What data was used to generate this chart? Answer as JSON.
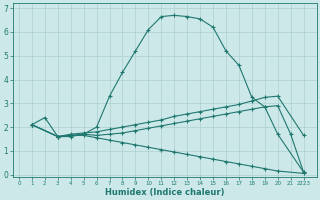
{
  "xlabel": "Humidex (Indice chaleur)",
  "bg_color": "#cde8e8",
  "grid_color": "#aecfcf",
  "line_color": "#1f7870",
  "xlim": [
    -0.5,
    23
  ],
  "ylim": [
    -0.1,
    7.2
  ],
  "xtick_labels": [
    "0",
    "1",
    "2",
    "3",
    "4",
    "5",
    "6",
    "7",
    "8",
    "9",
    "10",
    "11",
    "12",
    "13",
    "14",
    "15",
    "16",
    "17",
    "18",
    "19",
    "20",
    "21",
    "2223"
  ],
  "xtick_vals": [
    0,
    1,
    2,
    3,
    4,
    5,
    6,
    7,
    8,
    9,
    10,
    11,
    12,
    13,
    14,
    15,
    16,
    17,
    18,
    19,
    20,
    21,
    22
  ],
  "ytick_labels": [
    "0",
    "1",
    "2",
    "3",
    "4",
    "5",
    "6",
    "7"
  ],
  "ytick_vals": [
    0,
    1,
    2,
    3,
    4,
    5,
    6,
    7
  ],
  "series": [
    {
      "x": [
        1,
        2,
        3,
        4,
        5,
        6,
        7,
        8,
        9,
        10,
        11,
        12,
        13,
        14,
        15,
        16,
        17,
        18,
        19,
        20,
        22
      ],
      "y": [
        2.1,
        2.4,
        1.6,
        1.6,
        1.7,
        2.0,
        3.3,
        4.3,
        5.2,
        6.1,
        6.65,
        6.7,
        6.65,
        6.55,
        6.2,
        5.2,
        4.6,
        3.25,
        2.85,
        1.7,
        0.1
      ]
    },
    {
      "x": [
        1,
        3,
        4,
        5,
        6,
        7,
        8,
        9,
        10,
        11,
        12,
        13,
        14,
        15,
        16,
        17,
        18,
        19,
        20,
        22
      ],
      "y": [
        2.1,
        1.6,
        1.7,
        1.75,
        1.8,
        1.9,
        2.0,
        2.1,
        2.2,
        2.3,
        2.45,
        2.55,
        2.65,
        2.75,
        2.85,
        2.95,
        3.1,
        3.25,
        3.3,
        1.65
      ]
    },
    {
      "x": [
        1,
        3,
        4,
        5,
        6,
        7,
        8,
        9,
        10,
        11,
        12,
        13,
        14,
        15,
        16,
        17,
        18,
        19,
        20,
        21,
        22
      ],
      "y": [
        2.1,
        1.6,
        1.65,
        1.7,
        1.65,
        1.7,
        1.75,
        1.85,
        1.95,
        2.05,
        2.15,
        2.25,
        2.35,
        2.45,
        2.55,
        2.65,
        2.75,
        2.85,
        2.9,
        1.7,
        0.1
      ]
    },
    {
      "x": [
        1,
        3,
        4,
        5,
        6,
        7,
        8,
        9,
        10,
        11,
        12,
        13,
        14,
        15,
        16,
        17,
        18,
        19,
        20,
        22
      ],
      "y": [
        2.1,
        1.6,
        1.65,
        1.65,
        1.55,
        1.45,
        1.35,
        1.25,
        1.15,
        1.05,
        0.95,
        0.85,
        0.75,
        0.65,
        0.55,
        0.45,
        0.35,
        0.25,
        0.15,
        0.05
      ]
    }
  ]
}
